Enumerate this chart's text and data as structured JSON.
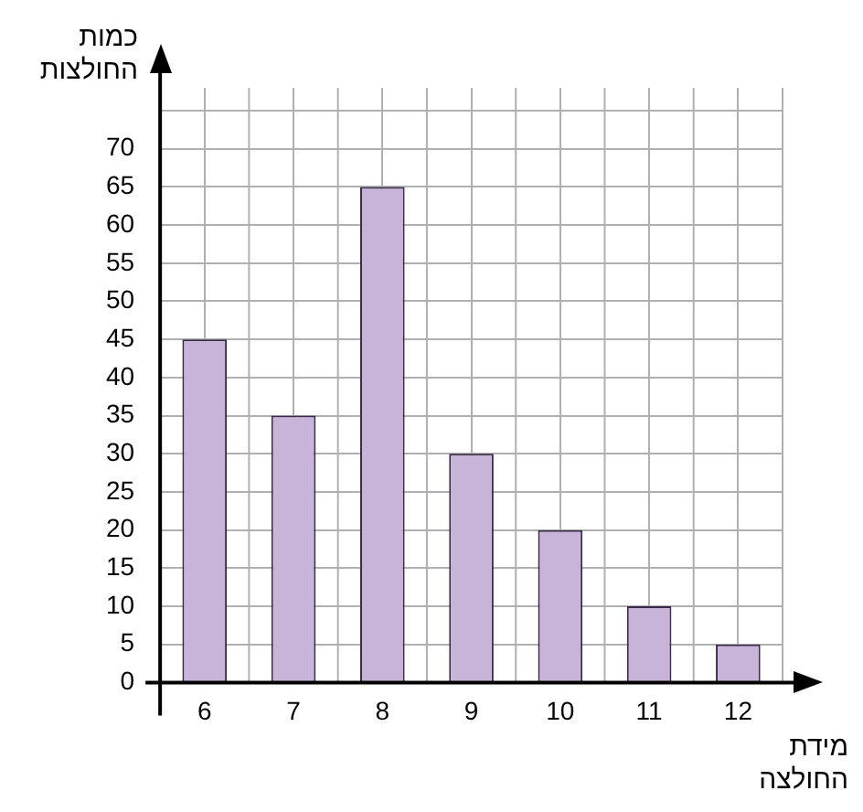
{
  "chart_data": {
    "type": "bar",
    "xlabel": "מידת החולצה",
    "ylabel": "כמות החולצות",
    "categories": [
      "6",
      "7",
      "8",
      "9",
      "10",
      "11",
      "12"
    ],
    "values": [
      45,
      35,
      65,
      30,
      20,
      10,
      5
    ],
    "color": "#c8b4d8",
    "ylim": [
      0,
      78
    ],
    "yticks": [
      0,
      5,
      10,
      15,
      20,
      25,
      30,
      35,
      40,
      45,
      50,
      55,
      60,
      65,
      70,
      {
        "value": 75,
        "label": null
      }
    ],
    "grid": true
  }
}
